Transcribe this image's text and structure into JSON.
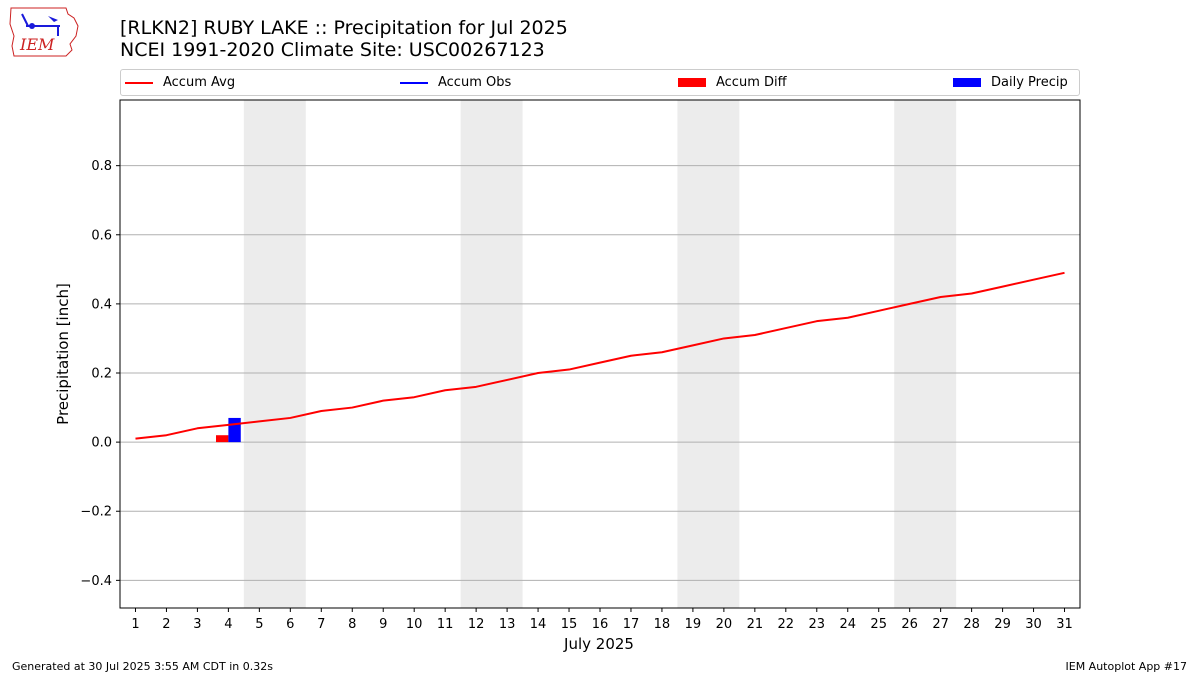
{
  "header": {
    "title_line1": "[RLKN2] RUBY LAKE :: Precipitation for Jul 2025",
    "title_line2": "NCEI 1991-2020 Climate Site: USC00267123"
  },
  "logo": {
    "text": "IEM",
    "icon": "iem-iowa-logo",
    "color": "#cc2222"
  },
  "legend": {
    "items": [
      {
        "label": "Accum Avg",
        "kind": "line",
        "color": "#ff0000"
      },
      {
        "label": "Accum Obs",
        "kind": "line",
        "color": "#0000ff"
      },
      {
        "label": "Accum Diff",
        "kind": "patch",
        "color": "#ff0000"
      },
      {
        "label": "Daily Precip",
        "kind": "patch",
        "color": "#0000ff"
      }
    ]
  },
  "footer": {
    "left": "Generated at 30 Jul 2025 3:55 AM CDT in 0.32s",
    "right": "IEM Autoplot App #17"
  },
  "chart_data": {
    "type": "line",
    "xlabel": "July 2025",
    "ylabel": "Precipitation [inch]",
    "xlim": [
      0.5,
      31.5
    ],
    "ylim": [
      -0.48,
      0.99
    ],
    "x": [
      1,
      2,
      3,
      4,
      5,
      6,
      7,
      8,
      9,
      10,
      11,
      12,
      13,
      14,
      15,
      16,
      17,
      18,
      19,
      20,
      21,
      22,
      23,
      24,
      25,
      26,
      27,
      28,
      29,
      30,
      31
    ],
    "yticks": [
      -0.4,
      -0.2,
      0.0,
      0.2,
      0.4,
      0.6,
      0.8
    ],
    "ytick_labels": [
      "−0.4",
      "−0.2",
      "0.0",
      "0.2",
      "0.4",
      "0.6",
      "0.8"
    ],
    "grid": "horizontal",
    "weekend_shading": [
      [
        4.5,
        6.5
      ],
      [
        11.5,
        13.5
      ],
      [
        18.5,
        20.5
      ],
      [
        25.5,
        27.5
      ]
    ],
    "shading_color": "#ececec",
    "series": [
      {
        "name": "Accum Avg",
        "kind": "line",
        "color": "#ff0000",
        "values": [
          0.01,
          0.02,
          0.04,
          0.05,
          0.06,
          0.07,
          0.09,
          0.1,
          0.12,
          0.13,
          0.15,
          0.16,
          0.18,
          0.2,
          0.21,
          0.23,
          0.25,
          0.26,
          0.28,
          0.3,
          0.31,
          0.33,
          0.35,
          0.36,
          0.38,
          0.4,
          0.42,
          0.43,
          0.45,
          0.47,
          0.49
        ]
      },
      {
        "name": "Accum Diff",
        "kind": "bar",
        "color": "#ff0000",
        "points": [
          {
            "x": 4,
            "y": 0.02
          }
        ]
      },
      {
        "name": "Daily Precip",
        "kind": "bar",
        "color": "#0000ff",
        "points": [
          {
            "x": 4,
            "y": 0.07
          }
        ]
      }
    ]
  }
}
